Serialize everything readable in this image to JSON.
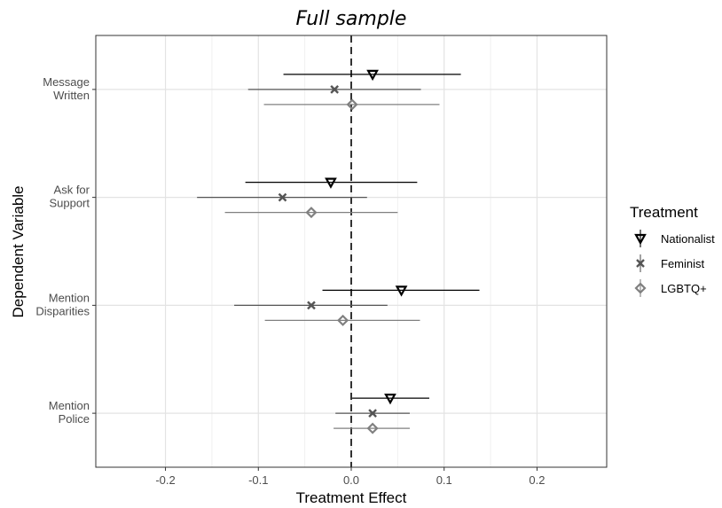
{
  "chart_data": {
    "type": "scatter",
    "subtype": "coefficient-plot-with-error-bars",
    "title": "Full sample",
    "xlabel": "Treatment Effect",
    "ylabel": "Dependent Variable",
    "xlim": [
      -0.275,
      0.275
    ],
    "xticks": [
      -0.2,
      -0.1,
      0.0,
      0.1,
      0.2
    ],
    "xtick_labels": [
      "-0.2",
      "-0.1",
      "0.0",
      "0.1",
      "0.2"
    ],
    "zero_line": "dashed",
    "grid": true,
    "categories": [
      [
        "Message",
        "Written"
      ],
      [
        "Ask for",
        "Support"
      ],
      [
        "Mention",
        "Disparities"
      ],
      [
        "Mention",
        "Police"
      ]
    ],
    "legend": {
      "title": "Treatment",
      "position": "right"
    },
    "series": [
      {
        "name": "Nationalist",
        "marker": "triangle-down",
        "color": "#000000",
        "estimates": [
          0.023,
          -0.022,
          0.054,
          0.042
        ],
        "ci_low": [
          -0.073,
          -0.114,
          -0.031,
          0.001
        ],
        "ci_high": [
          0.118,
          0.071,
          0.138,
          0.084
        ]
      },
      {
        "name": "Feminist",
        "marker": "x",
        "color": "#555555",
        "estimates": [
          -0.018,
          -0.074,
          -0.043,
          0.023
        ],
        "ci_low": [
          -0.111,
          -0.166,
          -0.126,
          -0.017
        ],
        "ci_high": [
          0.075,
          0.017,
          0.039,
          0.063
        ]
      },
      {
        "name": "LGBTQ+",
        "marker": "diamond",
        "color": "#808080",
        "estimates": [
          0.001,
          -0.043,
          -0.009,
          0.023
        ],
        "ci_low": [
          -0.094,
          -0.136,
          -0.093,
          -0.019
        ],
        "ci_high": [
          0.095,
          0.05,
          0.074,
          0.063
        ]
      }
    ]
  }
}
